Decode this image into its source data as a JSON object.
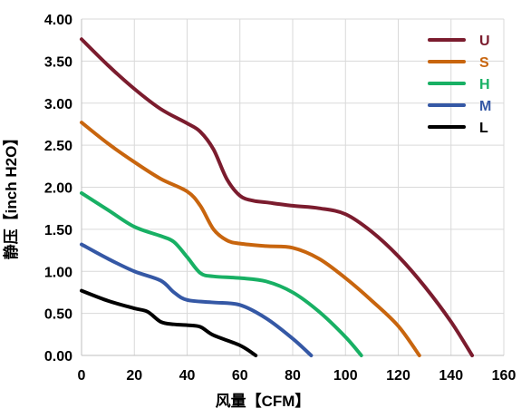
{
  "chart_data": {
    "type": "line",
    "xlabel": "风量【CFM】",
    "ylabel": "静压【inch H2O】",
    "xlim": [
      0,
      160
    ],
    "ylim": [
      0,
      4
    ],
    "x_ticks": [
      "0",
      "20",
      "40",
      "60",
      "80",
      "100",
      "120",
      "140",
      "160"
    ],
    "y_ticks": [
      "0.00",
      "0.50",
      "1.00",
      "1.50",
      "2.00",
      "2.50",
      "3.00",
      "3.50",
      "4.00"
    ],
    "grid": true,
    "legend_position": "top-right",
    "series": [
      {
        "name": "U",
        "color": "#7b1c2e",
        "points": [
          [
            0,
            3.76
          ],
          [
            10,
            3.45
          ],
          [
            20,
            3.17
          ],
          [
            30,
            2.93
          ],
          [
            40,
            2.76
          ],
          [
            45,
            2.66
          ],
          [
            50,
            2.45
          ],
          [
            55,
            2.1
          ],
          [
            60,
            1.9
          ],
          [
            65,
            1.84
          ],
          [
            70,
            1.82
          ],
          [
            80,
            1.78
          ],
          [
            90,
            1.75
          ],
          [
            100,
            1.68
          ],
          [
            110,
            1.47
          ],
          [
            120,
            1.18
          ],
          [
            130,
            0.82
          ],
          [
            140,
            0.4
          ],
          [
            148,
            0.0
          ]
        ]
      },
      {
        "name": "S",
        "color": "#c8650e",
        "points": [
          [
            0,
            2.77
          ],
          [
            10,
            2.52
          ],
          [
            20,
            2.3
          ],
          [
            30,
            2.1
          ],
          [
            40,
            1.95
          ],
          [
            45,
            1.78
          ],
          [
            50,
            1.5
          ],
          [
            55,
            1.37
          ],
          [
            60,
            1.33
          ],
          [
            70,
            1.3
          ],
          [
            80,
            1.28
          ],
          [
            90,
            1.15
          ],
          [
            100,
            0.92
          ],
          [
            110,
            0.65
          ],
          [
            120,
            0.35
          ],
          [
            128,
            0.0
          ]
        ]
      },
      {
        "name": "H",
        "color": "#18b064",
        "points": [
          [
            0,
            1.93
          ],
          [
            10,
            1.73
          ],
          [
            20,
            1.53
          ],
          [
            30,
            1.42
          ],
          [
            35,
            1.35
          ],
          [
            40,
            1.17
          ],
          [
            45,
            0.98
          ],
          [
            50,
            0.94
          ],
          [
            60,
            0.92
          ],
          [
            70,
            0.88
          ],
          [
            80,
            0.75
          ],
          [
            90,
            0.52
          ],
          [
            100,
            0.22
          ],
          [
            106,
            0.0
          ]
        ]
      },
      {
        "name": "M",
        "color": "#3558a5",
        "points": [
          [
            0,
            1.32
          ],
          [
            10,
            1.15
          ],
          [
            20,
            1.0
          ],
          [
            30,
            0.89
          ],
          [
            35,
            0.75
          ],
          [
            40,
            0.66
          ],
          [
            50,
            0.63
          ],
          [
            60,
            0.6
          ],
          [
            70,
            0.44
          ],
          [
            80,
            0.2
          ],
          [
            87,
            0.0
          ]
        ]
      },
      {
        "name": "L",
        "color": "#000000",
        "points": [
          [
            0,
            0.77
          ],
          [
            10,
            0.65
          ],
          [
            20,
            0.56
          ],
          [
            25,
            0.52
          ],
          [
            30,
            0.4
          ],
          [
            35,
            0.37
          ],
          [
            40,
            0.36
          ],
          [
            45,
            0.34
          ],
          [
            50,
            0.24
          ],
          [
            60,
            0.12
          ],
          [
            66,
            0.0
          ]
        ]
      }
    ]
  }
}
